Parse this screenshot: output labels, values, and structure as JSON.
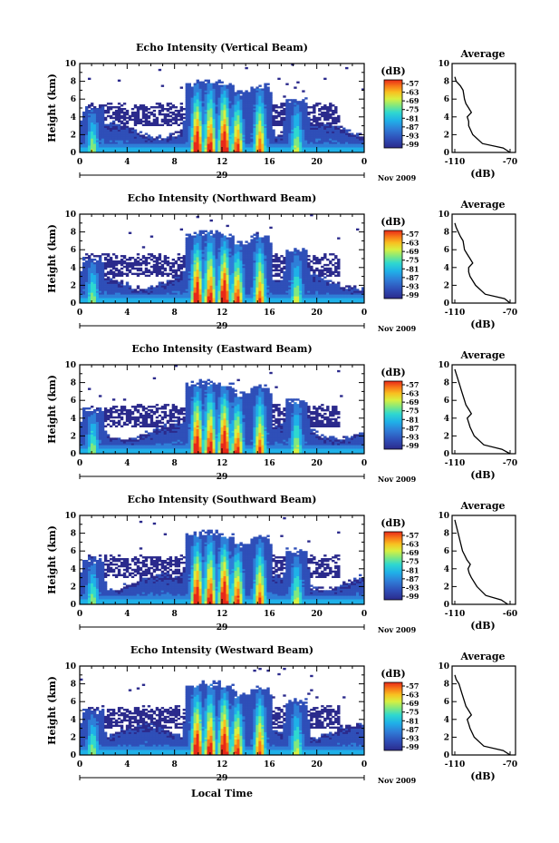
{
  "chart_data": [
    {
      "type": "heatmap",
      "title": "Echo Intensity (Vertical Beam)",
      "ylabel": "Height (km)",
      "x_ticks": [
        "0",
        "4",
        "8",
        "12",
        "16",
        "20",
        "0"
      ],
      "y_ticks": [
        "0",
        "2",
        "4",
        "6",
        "8",
        "10"
      ],
      "xlim": [
        0,
        24
      ],
      "ylim": [
        0,
        10
      ],
      "date_marker": "29",
      "month_label": "Nov 2009",
      "colorbar": {
        "unit": "(dB)",
        "ticks": [
          "-57",
          "-63",
          "-69",
          "-75",
          "-81",
          "-87",
          "-93",
          "-99"
        ]
      },
      "average": {
        "title": "Average",
        "xlabel": "(dB)",
        "x_ticks": [
          "-110",
          "-70"
        ],
        "y_ticks": [
          "0",
          "2",
          "4",
          "6",
          "8",
          "10"
        ],
        "profile": [
          [
            -70,
            0
          ],
          [
            -75,
            0.5
          ],
          [
            -90,
            1
          ],
          [
            -97,
            2
          ],
          [
            -100,
            3
          ],
          [
            -100,
            3.5
          ],
          [
            -101,
            4
          ],
          [
            -98,
            4.5
          ],
          [
            -100,
            5
          ],
          [
            -102,
            5.5
          ],
          [
            -103,
            6
          ],
          [
            -104,
            7
          ],
          [
            -106,
            7.5
          ],
          [
            -109,
            8
          ],
          [
            -110,
            8.5
          ]
        ]
      }
    },
    {
      "type": "heatmap",
      "title": "Echo Intensity (Northward Beam)",
      "ylabel": "Height (km)",
      "x_ticks": [
        "0",
        "4",
        "8",
        "12",
        "16",
        "20",
        "0"
      ],
      "y_ticks": [
        "0",
        "2",
        "4",
        "6",
        "8",
        "10"
      ],
      "xlim": [
        0,
        24
      ],
      "ylim": [
        0,
        10
      ],
      "date_marker": "29",
      "month_label": "Nov 2009",
      "colorbar": {
        "unit": "(dB)",
        "ticks": [
          "-57",
          "-63",
          "-69",
          "-75",
          "-81",
          "-87",
          "-93",
          "-99"
        ]
      },
      "average": {
        "title": "Average",
        "xlabel": "(dB)",
        "x_ticks": [
          "-110",
          "-70"
        ],
        "y_ticks": [
          "0",
          "2",
          "4",
          "6",
          "8",
          "10"
        ],
        "profile": [
          [
            -70,
            0
          ],
          [
            -74,
            0.5
          ],
          [
            -88,
            1
          ],
          [
            -95,
            2
          ],
          [
            -99,
            3
          ],
          [
            -100,
            3.5
          ],
          [
            -100,
            4
          ],
          [
            -97,
            4.5
          ],
          [
            -99,
            5
          ],
          [
            -101,
            5.5
          ],
          [
            -103,
            6
          ],
          [
            -104,
            7
          ],
          [
            -106,
            7.5
          ],
          [
            -109,
            8.5
          ],
          [
            -110,
            9
          ]
        ]
      }
    },
    {
      "type": "heatmap",
      "title": "Echo Intensity (Eastward Beam)",
      "ylabel": "Height (km)",
      "x_ticks": [
        "0",
        "4",
        "8",
        "12",
        "16",
        "20",
        "0"
      ],
      "y_ticks": [
        "0",
        "2",
        "4",
        "6",
        "8",
        "10"
      ],
      "xlim": [
        0,
        24
      ],
      "ylim": [
        0,
        10
      ],
      "date_marker": "29",
      "month_label": "Nov 2009",
      "colorbar": {
        "unit": "(dB)",
        "ticks": [
          "-57",
          "-63",
          "-69",
          "-75",
          "-81",
          "-87",
          "-93",
          "-99"
        ]
      },
      "average": {
        "title": "Average",
        "xlabel": "(dB)",
        "x_ticks": [
          "-110",
          "-70"
        ],
        "y_ticks": [
          "0",
          "2",
          "4",
          "6",
          "8",
          "10"
        ],
        "profile": [
          [
            -70,
            0
          ],
          [
            -76,
            0.5
          ],
          [
            -89,
            1
          ],
          [
            -96,
            2
          ],
          [
            -99,
            3
          ],
          [
            -100,
            3.5
          ],
          [
            -101,
            4
          ],
          [
            -98,
            4.5
          ],
          [
            -100,
            5
          ],
          [
            -102,
            5.5
          ],
          [
            -103,
            6
          ],
          [
            -105,
            7
          ],
          [
            -107,
            8
          ],
          [
            -109,
            9
          ],
          [
            -110,
            9.5
          ]
        ]
      }
    },
    {
      "type": "heatmap",
      "title": "Echo Intensity (Southward Beam)",
      "ylabel": "Height (km)",
      "x_ticks": [
        "0",
        "4",
        "8",
        "12",
        "16",
        "20",
        "0"
      ],
      "y_ticks": [
        "0",
        "2",
        "4",
        "6",
        "8",
        "10"
      ],
      "xlim": [
        0,
        24
      ],
      "ylim": [
        0,
        10
      ],
      "date_marker": "29",
      "month_label": "Nov 2009",
      "colorbar": {
        "unit": "(dB)",
        "ticks": [
          "-57",
          "-63",
          "-69",
          "-75",
          "-81",
          "-87",
          "-93",
          "-99"
        ]
      },
      "average": {
        "title": "Average",
        "xlabel": "(dB)",
        "x_ticks": [
          "-110",
          "-60"
        ],
        "y_ticks": [
          "0",
          "2",
          "4",
          "6",
          "8",
          "10"
        ],
        "profile": [
          [
            -62,
            0
          ],
          [
            -68,
            0.5
          ],
          [
            -82,
            1
          ],
          [
            -90,
            2
          ],
          [
            -95,
            3
          ],
          [
            -97,
            3.5
          ],
          [
            -98,
            4
          ],
          [
            -96,
            4.5
          ],
          [
            -99,
            5
          ],
          [
            -101,
            5.5
          ],
          [
            -103,
            6
          ],
          [
            -105,
            7
          ],
          [
            -107,
            8
          ],
          [
            -109,
            9
          ],
          [
            -110,
            9.5
          ]
        ]
      }
    },
    {
      "type": "heatmap",
      "title": "Echo Intensity (Westward Beam)",
      "ylabel": "Height (km)",
      "xlabel": "Local Time",
      "x_ticks": [
        "0",
        "4",
        "8",
        "12",
        "16",
        "20",
        "0"
      ],
      "y_ticks": [
        "0",
        "2",
        "4",
        "6",
        "8",
        "10"
      ],
      "xlim": [
        0,
        24
      ],
      "ylim": [
        0,
        10
      ],
      "date_marker": "29",
      "month_label": "Nov 2009",
      "colorbar": {
        "unit": "(dB)",
        "ticks": [
          "-57",
          "-63",
          "-69",
          "-75",
          "-81",
          "-87",
          "-93",
          "-99"
        ]
      },
      "average": {
        "title": "Average",
        "xlabel": "(dB)",
        "x_ticks": [
          "-110",
          "-70"
        ],
        "y_ticks": [
          "0",
          "2",
          "4",
          "6",
          "8",
          "10"
        ],
        "profile": [
          [
            -70,
            0
          ],
          [
            -75,
            0.5
          ],
          [
            -89,
            1
          ],
          [
            -96,
            2
          ],
          [
            -99,
            3
          ],
          [
            -100,
            3.5
          ],
          [
            -101,
            4
          ],
          [
            -98,
            4.5
          ],
          [
            -100,
            5
          ],
          [
            -102,
            5.5
          ],
          [
            -103,
            6
          ],
          [
            -105,
            7
          ],
          [
            -107,
            8
          ],
          [
            -109,
            8.5
          ],
          [
            -110,
            9
          ]
        ]
      }
    }
  ],
  "convection_cells": [
    {
      "t": 1.1,
      "top": 5.0,
      "strength": 0.45
    },
    {
      "t": 9.9,
      "top": 7.8,
      "strength": 0.95
    },
    {
      "t": 11.0,
      "top": 8.0,
      "strength": 0.85
    },
    {
      "t": 12.2,
      "top": 7.7,
      "strength": 1.0
    },
    {
      "t": 13.3,
      "top": 6.8,
      "strength": 0.8
    },
    {
      "t": 15.2,
      "top": 7.5,
      "strength": 0.75
    },
    {
      "t": 18.3,
      "top": 6.0,
      "strength": 0.5
    }
  ],
  "colors": {
    "scale": [
      "#2b2a8c",
      "#2f4fb8",
      "#2f7fd8",
      "#1fb0e8",
      "#2fd8d0",
      "#80e880",
      "#d8f040",
      "#f8c020",
      "#f87818",
      "#e82818"
    ]
  }
}
